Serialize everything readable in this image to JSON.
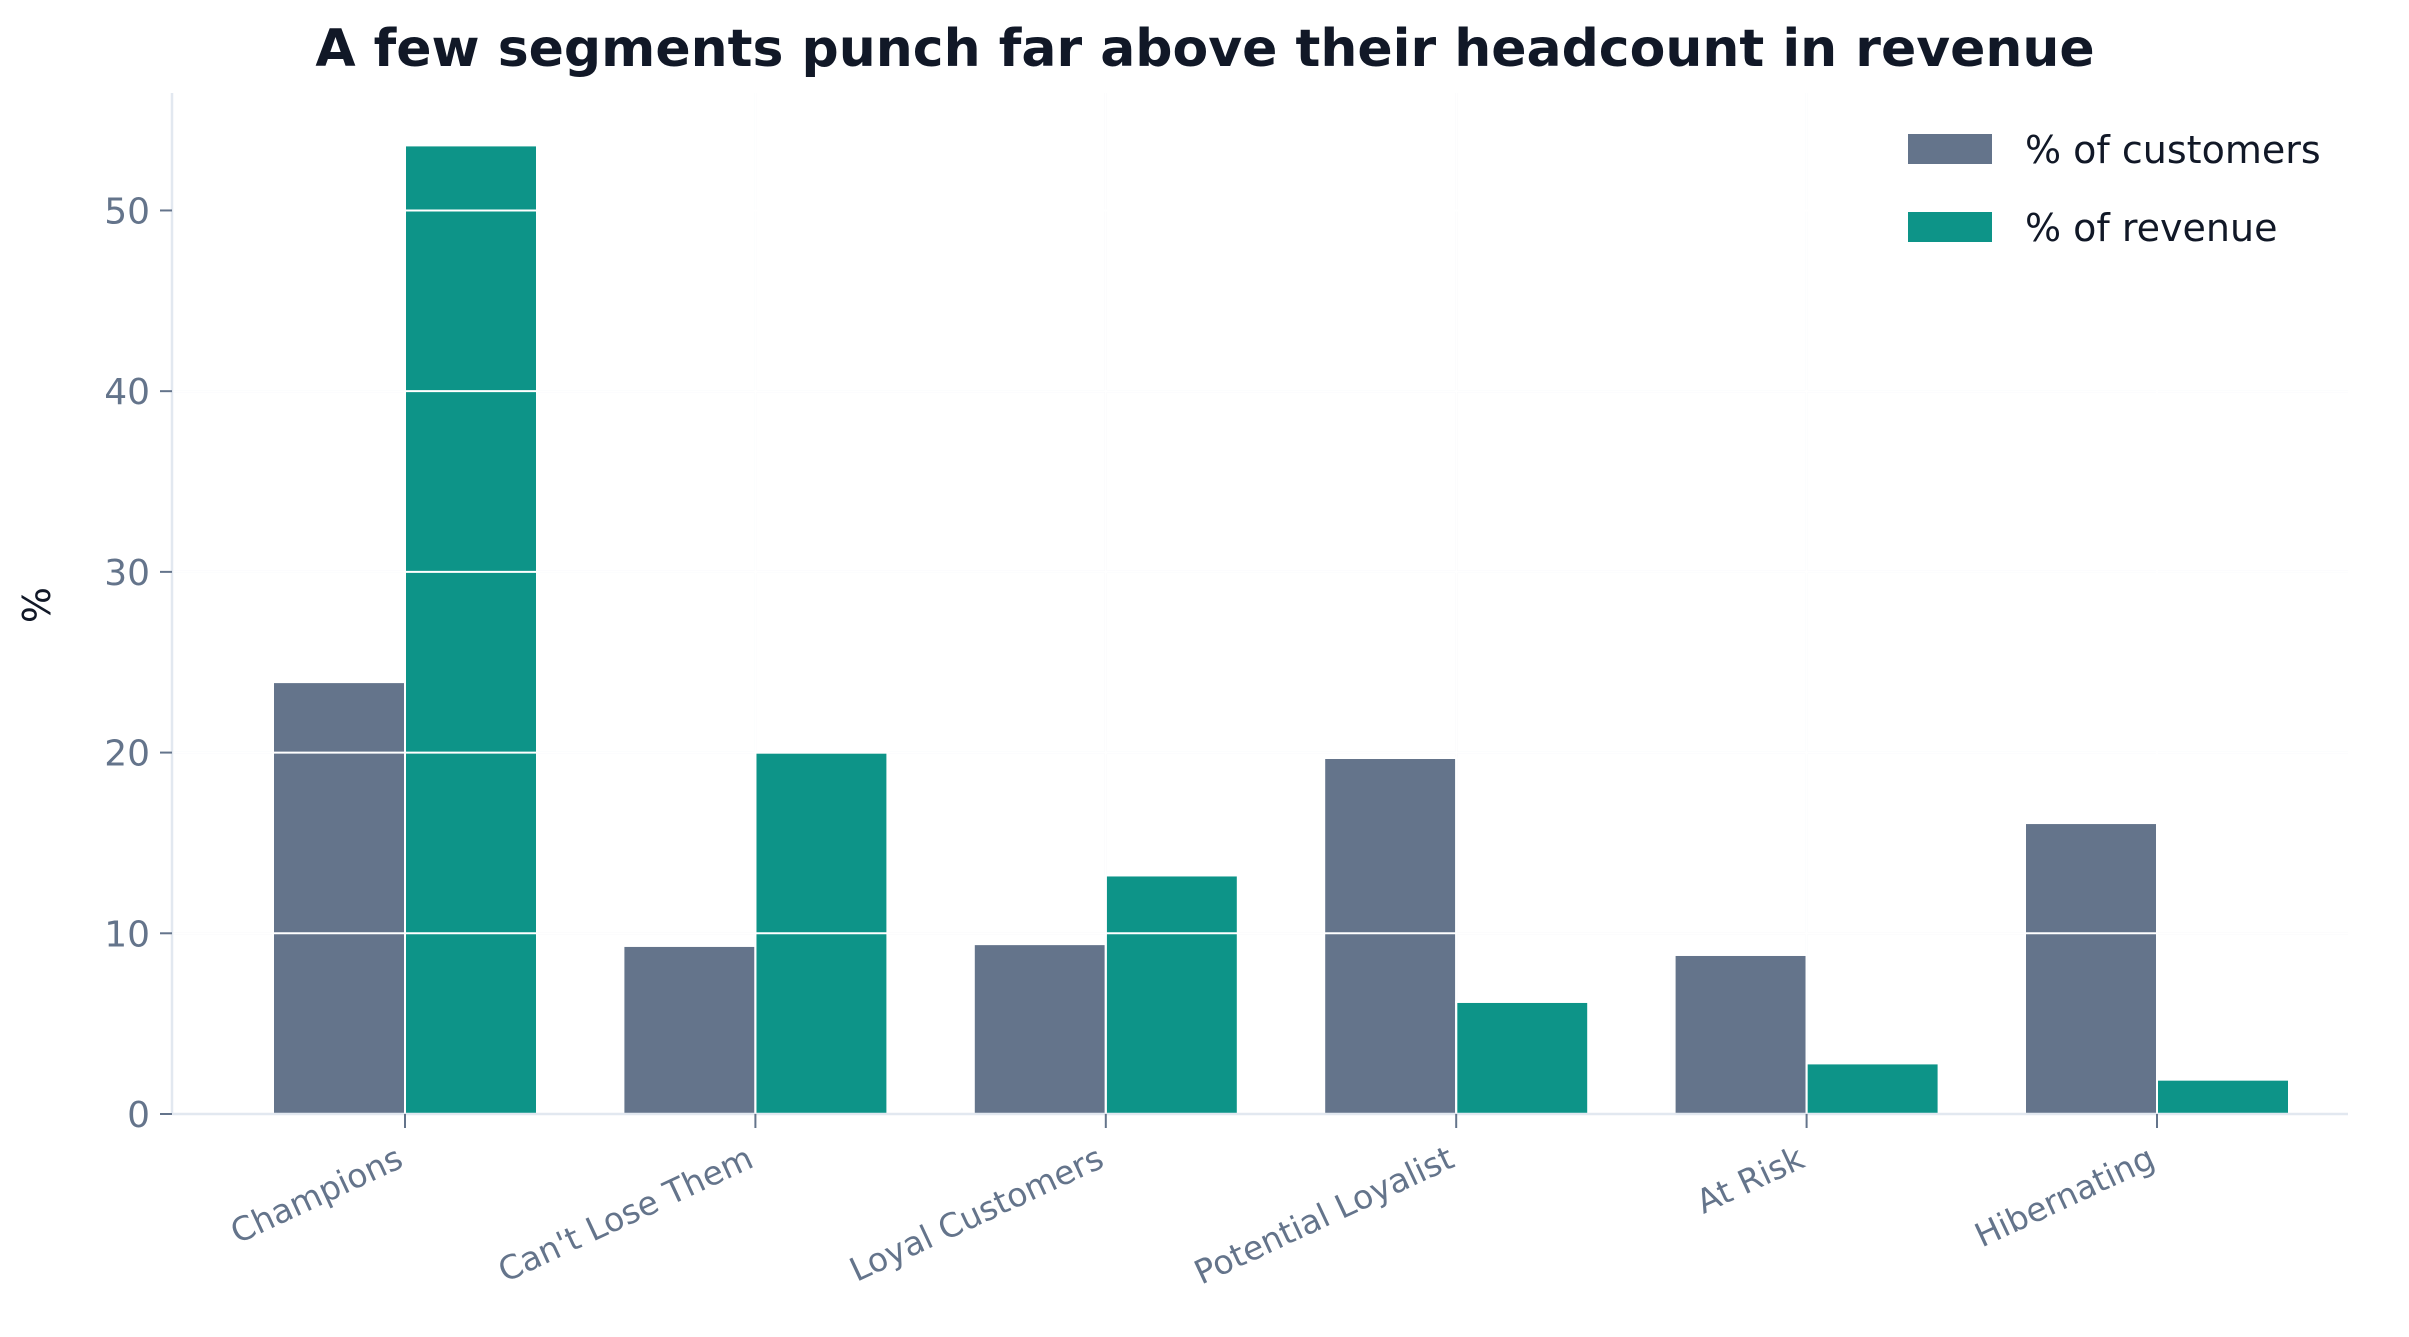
{
  "chart_data": {
    "type": "bar",
    "title": "A few segments punch far above their headcount in revenue",
    "xlabel": "",
    "ylabel": "%",
    "ylim": [
      0,
      56.5
    ],
    "yticks": [
      0,
      10,
      20,
      30,
      40,
      50
    ],
    "grid": true,
    "legend_position": "top-right",
    "categories": [
      "Champions",
      "Can't Lose Them",
      "Loyal Customers",
      "Potential Loyalist",
      "At Risk",
      "Hibernating"
    ],
    "series": [
      {
        "name": "% of customers",
        "color": "#64748b",
        "values": [
          23.9,
          9.3,
          9.4,
          19.7,
          8.8,
          16.1
        ]
      },
      {
        "name": "% of revenue",
        "color": "#0d9488",
        "values": [
          53.6,
          20.0,
          13.2,
          6.2,
          2.8,
          1.9
        ]
      }
    ]
  }
}
